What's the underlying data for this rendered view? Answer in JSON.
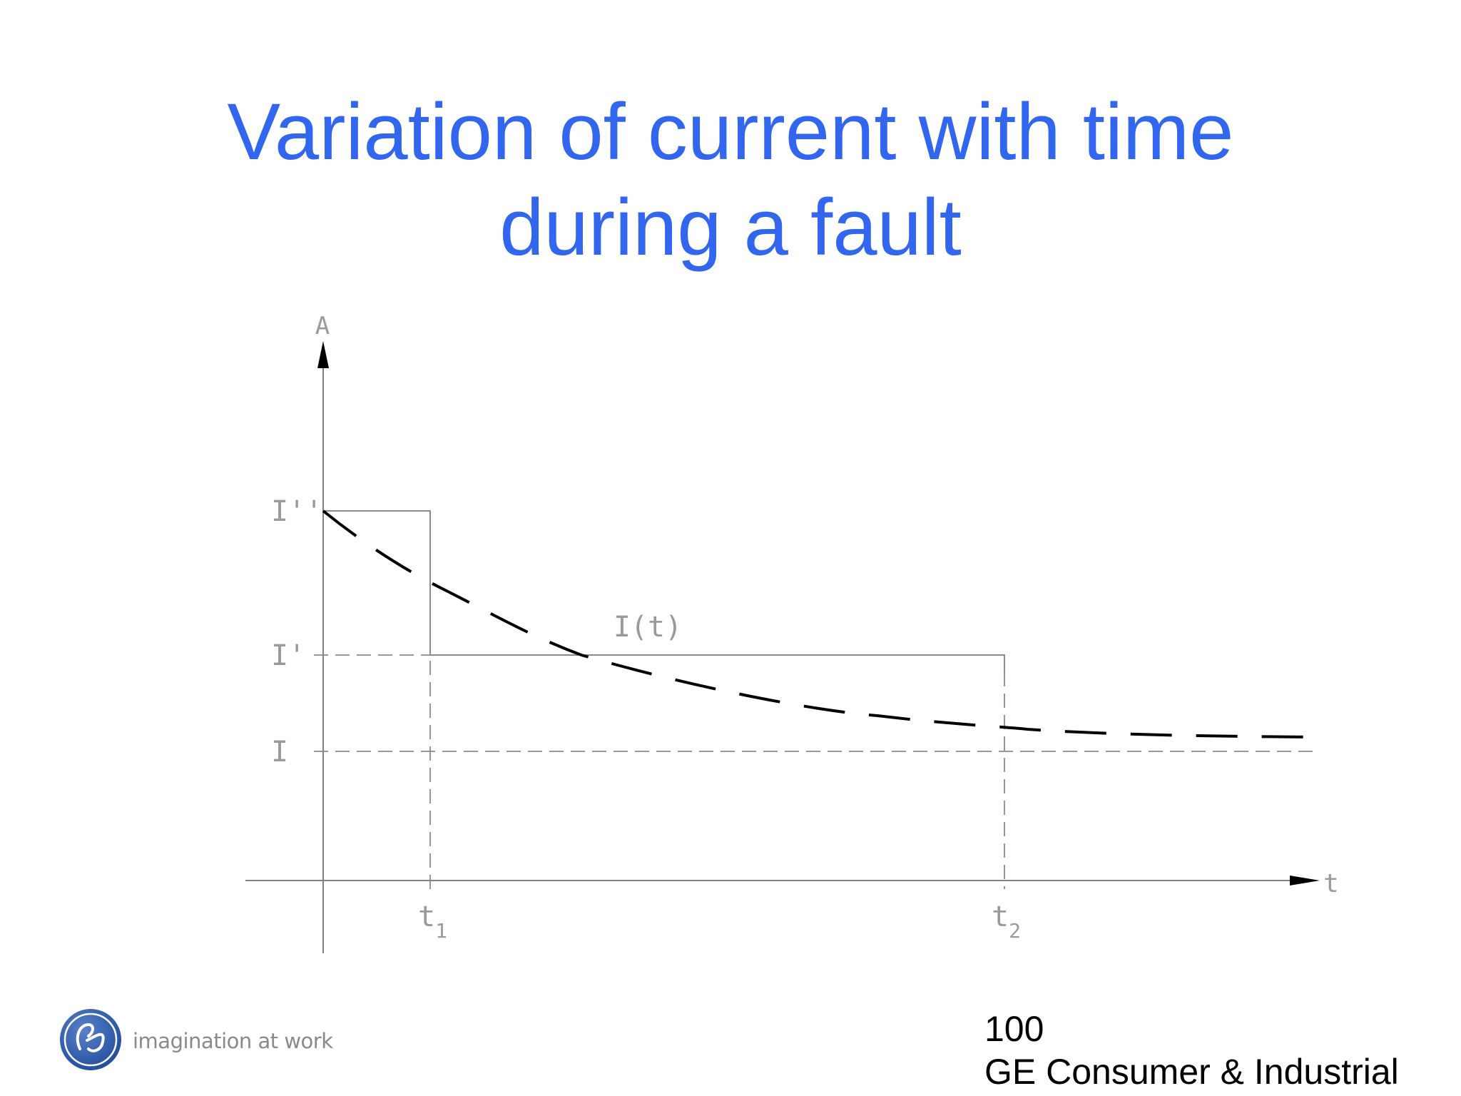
{
  "title": {
    "line1": "Variation of current with time",
    "line2": "during a fault"
  },
  "diagram": {
    "y_axis_label": "A",
    "x_axis_label": "t",
    "levels": {
      "subtransient": "I''",
      "transient": "I'",
      "steady_state": "I"
    },
    "curve_label": "I(t)",
    "time_marks": {
      "t1_base": "t",
      "t1_sub": "1",
      "t2_base": "t",
      "t2_sub": "2"
    }
  },
  "footer": {
    "logo_icon": "ge-logo-icon",
    "tagline": "imagination at work",
    "page_number": "100",
    "company": "GE Consumer & Industrial"
  },
  "colors": {
    "title": "#3366ee",
    "axis": "#808080",
    "curve": "#000000",
    "labels": "#9a9a9a",
    "logo": "#2b56a5"
  }
}
